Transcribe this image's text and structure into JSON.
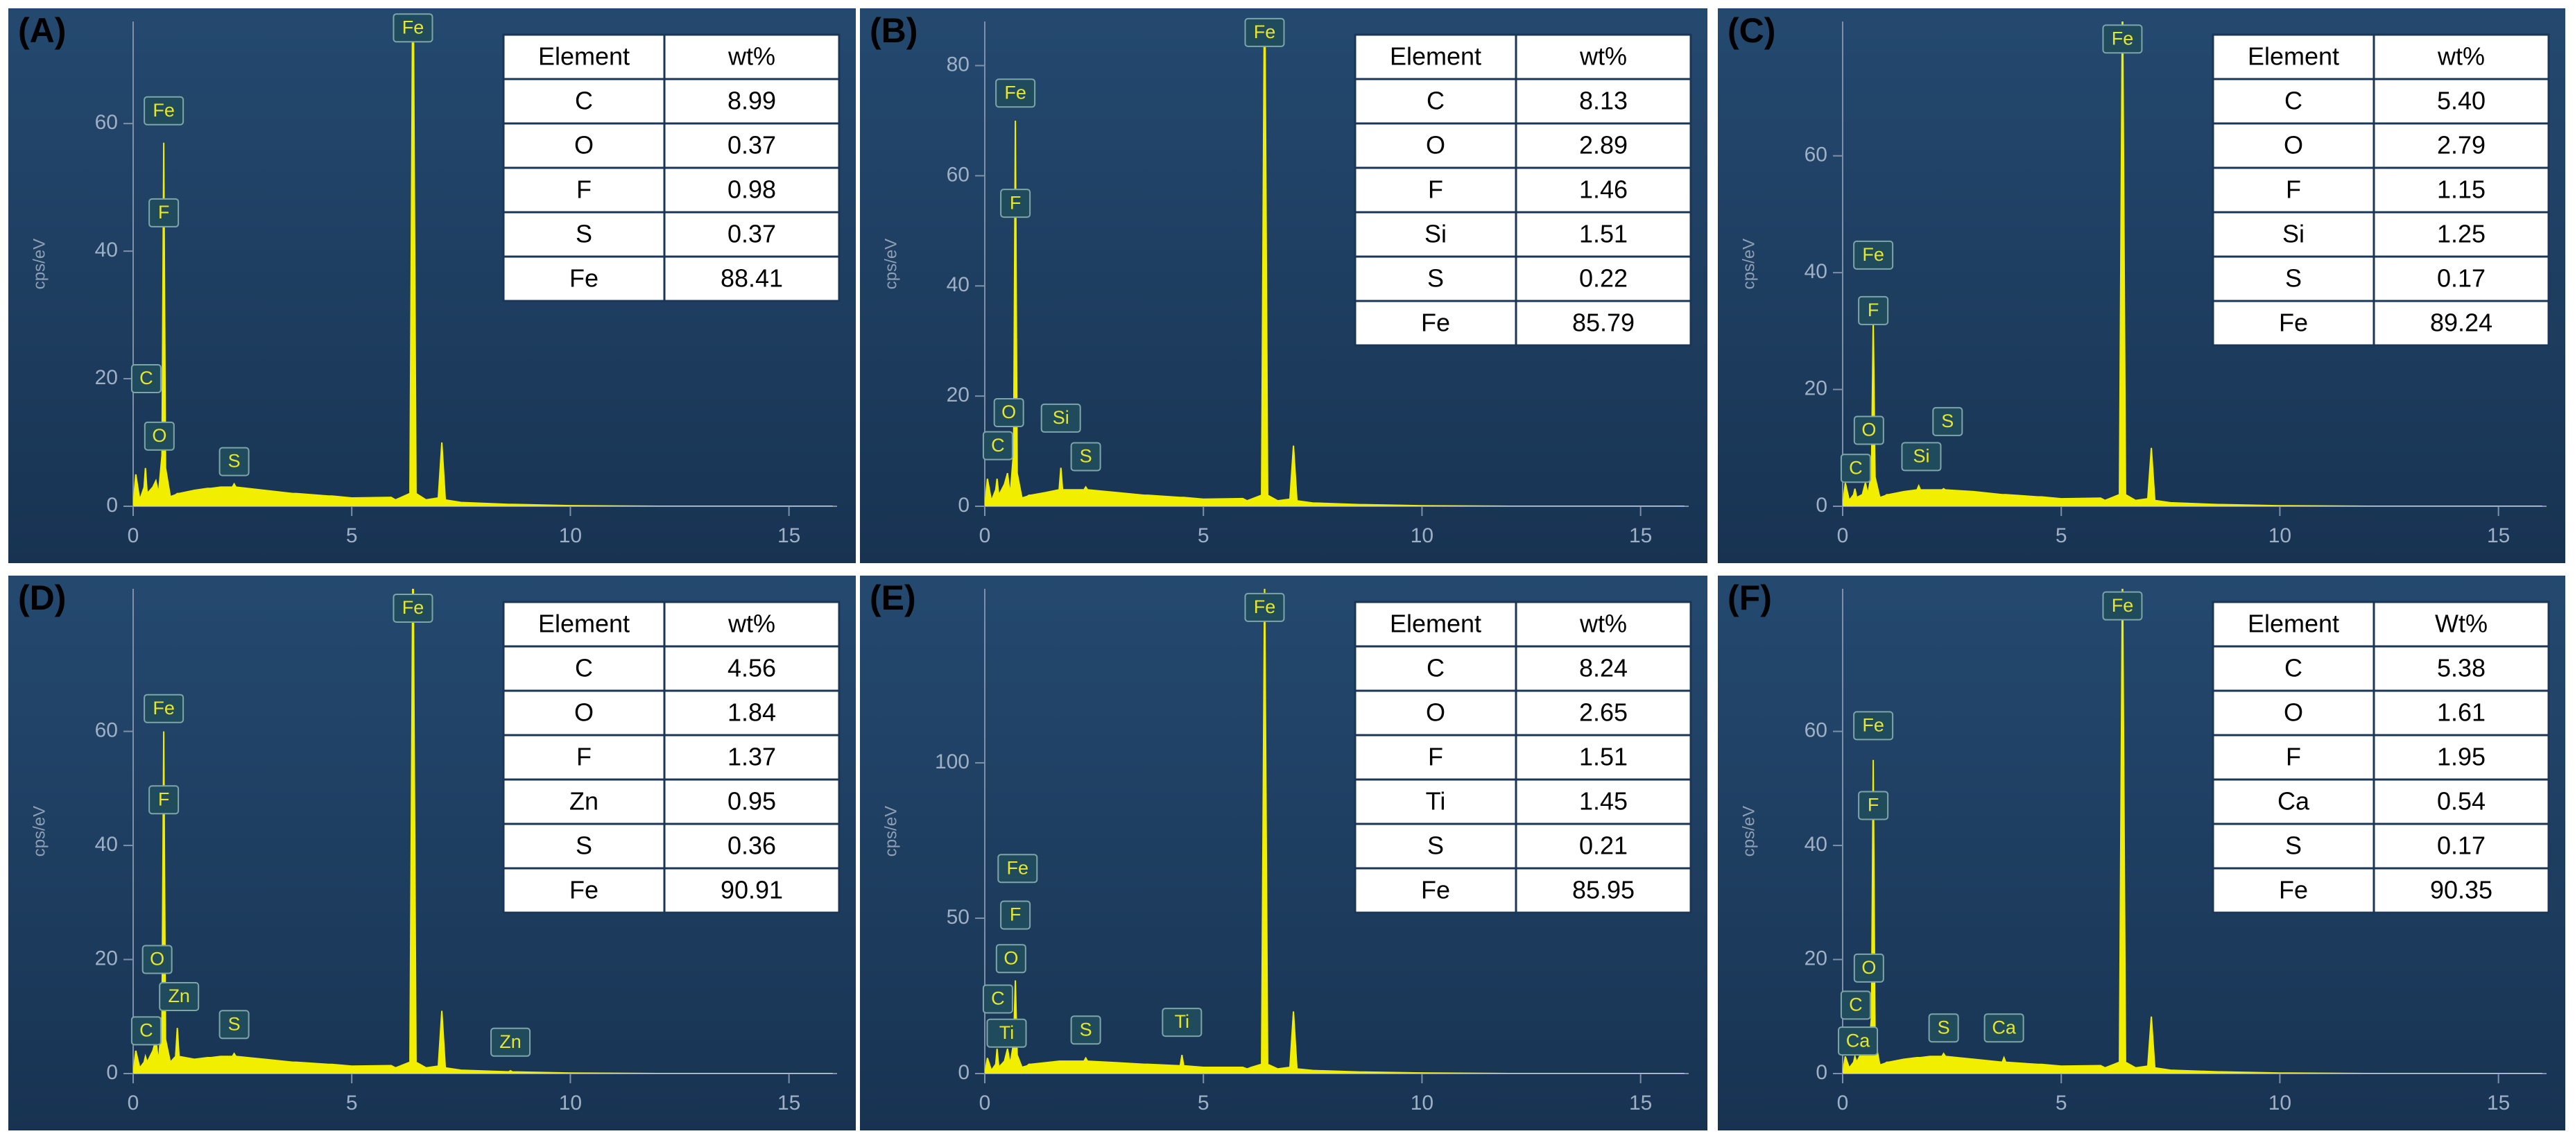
{
  "chart_data": [
    {
      "type": "area",
      "title": "(A)",
      "ylabel": "cps/eV",
      "color": "#f2ee00",
      "x": [
        0,
        0.06,
        0.15,
        0.25,
        0.28,
        0.32,
        0.45,
        0.52,
        0.58,
        0.66,
        0.7,
        0.74,
        0.85,
        0.97,
        1.01,
        1.05,
        1.4,
        1.7,
        1.74,
        1.78,
        2.0,
        2.27,
        2.31,
        2.35,
        3.0,
        3.65,
        3.69,
        3.73,
        4.47,
        4.51,
        4.55,
        5.0,
        5.9,
        6.0,
        6.1,
        6.33,
        6.4,
        6.47,
        6.7,
        6.98,
        7.06,
        7.14,
        7.5,
        8.59,
        8.63,
        8.67,
        10,
        12,
        16
      ],
      "values": [
        0,
        5,
        1,
        3,
        6,
        2,
        3,
        4,
        2,
        8,
        57,
        6,
        1.5,
        1.8,
        2,
        2,
        2.5,
        2.8,
        2.8,
        2.8,
        3,
        3,
        3.5,
        3,
        2.5,
        2,
        2,
        2,
        1.6,
        1.6,
        1.6,
        1.3,
        1.4,
        1,
        1.3,
        2,
        90,
        2,
        1,
        1.3,
        10,
        1,
        0.6,
        0.3,
        0.3,
        0.3,
        0.1,
        0,
        0
      ],
      "xlim": [
        0,
        16.1
      ],
      "xticks": [
        0,
        5,
        10,
        15
      ],
      "ylim": [
        0,
        76
      ],
      "yticks": [
        0,
        20,
        40,
        60
      ],
      "annotations": [
        {
          "text": "Fe",
          "x": 6.4,
          "y": 75
        },
        {
          "text": "Fe",
          "x": 0.7,
          "y": 62
        },
        {
          "text": "F",
          "x": 0.7,
          "y": 46
        },
        {
          "text": "C",
          "x": 0.3,
          "y": 20
        },
        {
          "text": "O",
          "x": 0.6,
          "y": 11
        },
        {
          "text": "S",
          "x": 2.31,
          "y": 7
        }
      ],
      "table": {
        "columns": [
          "Element",
          "wt%"
        ],
        "rows": [
          [
            "C",
            "8.99"
          ],
          [
            "O",
            "0.37"
          ],
          [
            "F",
            "0.98"
          ],
          [
            "S",
            "0.37"
          ],
          [
            "Fe",
            "88.41"
          ]
        ]
      }
    },
    {
      "type": "area",
      "title": "(B)",
      "ylabel": "cps/eV",
      "color": "#f2ee00",
      "x": [
        0,
        0.06,
        0.15,
        0.25,
        0.28,
        0.32,
        0.45,
        0.52,
        0.58,
        0.66,
        0.7,
        0.74,
        0.85,
        0.97,
        1.01,
        1.05,
        1.4,
        1.7,
        1.74,
        1.78,
        2.0,
        2.27,
        2.31,
        2.35,
        3.0,
        3.65,
        3.69,
        3.73,
        4.47,
        4.51,
        4.55,
        5.0,
        5.9,
        6.0,
        6.1,
        6.33,
        6.4,
        6.47,
        6.7,
        6.98,
        7.06,
        7.14,
        7.5,
        8.59,
        8.63,
        8.67,
        10,
        12,
        16
      ],
      "values": [
        0,
        5,
        1,
        3,
        5,
        2,
        4,
        6,
        2,
        10,
        70,
        6,
        1.5,
        1.8,
        2,
        2,
        2.5,
        3,
        7,
        3,
        3,
        3,
        3.5,
        3,
        2.5,
        2,
        2,
        2,
        1.6,
        1.6,
        1.6,
        1.3,
        1.4,
        1,
        1.3,
        2,
        100,
        2,
        1,
        1.3,
        11,
        1,
        0.6,
        0.3,
        0.3,
        0.3,
        0.1,
        0,
        0
      ],
      "xlim": [
        0,
        16.1
      ],
      "xticks": [
        0,
        5,
        10,
        15
      ],
      "ylim": [
        0,
        88
      ],
      "yticks": [
        0,
        20,
        40,
        60,
        80
      ],
      "annotations": [
        {
          "text": "Fe",
          "x": 6.4,
          "y": 86
        },
        {
          "text": "Fe",
          "x": 0.7,
          "y": 75
        },
        {
          "text": "F",
          "x": 0.7,
          "y": 55
        },
        {
          "text": "O",
          "x": 0.55,
          "y": 17
        },
        {
          "text": "C",
          "x": 0.3,
          "y": 11
        },
        {
          "text": "Si",
          "x": 1.74,
          "y": 16
        },
        {
          "text": "S",
          "x": 2.31,
          "y": 9
        }
      ],
      "table": {
        "columns": [
          "Element",
          "wt%"
        ],
        "rows": [
          [
            "C",
            "8.13"
          ],
          [
            "O",
            "2.89"
          ],
          [
            "F",
            "1.46"
          ],
          [
            "Si",
            "1.51"
          ],
          [
            "S",
            "0.22"
          ],
          [
            "Fe",
            "85.79"
          ]
        ]
      }
    },
    {
      "type": "area",
      "title": "(C)",
      "ylabel": "cps/eV",
      "color": "#f2ee00",
      "x": [
        0,
        0.06,
        0.15,
        0.25,
        0.28,
        0.32,
        0.45,
        0.52,
        0.58,
        0.66,
        0.7,
        0.74,
        0.85,
        0.97,
        1.01,
        1.05,
        1.4,
        1.7,
        1.74,
        1.78,
        2.0,
        2.27,
        2.31,
        2.35,
        3.0,
        3.65,
        3.69,
        3.73,
        4.47,
        4.51,
        4.55,
        5.0,
        5.9,
        6.0,
        6.1,
        6.33,
        6.4,
        6.47,
        6.7,
        6.98,
        7.06,
        7.14,
        7.5,
        8.59,
        8.63,
        8.67,
        10,
        12,
        16
      ],
      "values": [
        0,
        4,
        1,
        2,
        3,
        1.5,
        2,
        4,
        2,
        6,
        32,
        5,
        1.5,
        1.8,
        2,
        2,
        2.5,
        2.8,
        3.5,
        2.8,
        2.8,
        2.8,
        3,
        2.8,
        2.5,
        2,
        2,
        2,
        1.6,
        1.6,
        1.6,
        1.3,
        1.4,
        1,
        1.3,
        2,
        90,
        2,
        1,
        1.3,
        10,
        1,
        0.6,
        0.3,
        0.3,
        0.3,
        0.1,
        0,
        0
      ],
      "xlim": [
        0,
        16.1
      ],
      "xticks": [
        0,
        5,
        10,
        15
      ],
      "ylim": [
        0,
        83
      ],
      "yticks": [
        0,
        20,
        40,
        60
      ],
      "annotations": [
        {
          "text": "Fe",
          "x": 6.4,
          "y": 80
        },
        {
          "text": "Fe",
          "x": 0.7,
          "y": 43
        },
        {
          "text": "F",
          "x": 0.7,
          "y": 33.5
        },
        {
          "text": "O",
          "x": 0.6,
          "y": 13
        },
        {
          "text": "C",
          "x": 0.3,
          "y": 6.5
        },
        {
          "text": "Si",
          "x": 1.8,
          "y": 8.5
        },
        {
          "text": "S",
          "x": 2.4,
          "y": 14.5
        }
      ],
      "table": {
        "columns": [
          "Element",
          "wt%"
        ],
        "rows": [
          [
            "C",
            "5.40"
          ],
          [
            "O",
            "2.79"
          ],
          [
            "F",
            "1.15"
          ],
          [
            "Si",
            "1.25"
          ],
          [
            "S",
            "0.17"
          ],
          [
            "Fe",
            "89.24"
          ]
        ]
      }
    },
    {
      "type": "area",
      "title": "(D)",
      "ylabel": "cps/eV",
      "color": "#f2ee00",
      "x": [
        0,
        0.06,
        0.15,
        0.25,
        0.28,
        0.32,
        0.45,
        0.52,
        0.58,
        0.66,
        0.7,
        0.74,
        0.85,
        0.97,
        1.01,
        1.05,
        1.4,
        1.7,
        1.74,
        1.78,
        2.0,
        2.27,
        2.31,
        2.35,
        3.0,
        3.65,
        3.69,
        3.73,
        4.47,
        4.51,
        4.55,
        5.0,
        5.9,
        6.0,
        6.1,
        6.33,
        6.4,
        6.47,
        6.7,
        6.98,
        7.06,
        7.14,
        7.5,
        8.59,
        8.63,
        8.67,
        10,
        12,
        16
      ],
      "values": [
        0,
        4,
        1,
        2,
        3,
        2,
        4,
        6,
        2,
        10,
        60,
        6,
        2,
        3,
        8,
        3,
        2.5,
        2.8,
        2.8,
        2.8,
        3,
        3,
        3.5,
        3,
        2.5,
        2,
        2,
        2,
        1.6,
        1.6,
        1.6,
        1.3,
        1.4,
        1,
        1.3,
        2,
        95,
        2,
        1,
        1.3,
        11,
        1,
        0.6,
        0.3,
        0.5,
        0.3,
        0.1,
        0,
        0
      ],
      "xlim": [
        0,
        16.1
      ],
      "xticks": [
        0,
        5,
        10,
        15
      ],
      "ylim": [
        0,
        85
      ],
      "yticks": [
        0,
        20,
        40,
        60
      ],
      "annotations": [
        {
          "text": "Fe",
          "x": 6.4,
          "y": 81.6
        },
        {
          "text": "Fe",
          "x": 0.7,
          "y": 64
        },
        {
          "text": "F",
          "x": 0.7,
          "y": 48
        },
        {
          "text": "O",
          "x": 0.55,
          "y": 20
        },
        {
          "text": "Zn",
          "x": 1.05,
          "y": 13.5
        },
        {
          "text": "C",
          "x": 0.3,
          "y": 7.5
        },
        {
          "text": "S",
          "x": 2.31,
          "y": 8.6
        },
        {
          "text": "Zn",
          "x": 8.63,
          "y": 5.5
        }
      ],
      "table": {
        "columns": [
          "Element",
          "wt%"
        ],
        "rows": [
          [
            "C",
            "4.56"
          ],
          [
            "O",
            "1.84"
          ],
          [
            "F",
            "1.37"
          ],
          [
            "Zn",
            "0.95"
          ],
          [
            "S",
            "0.36"
          ],
          [
            "Fe",
            "90.91"
          ]
        ]
      }
    },
    {
      "type": "area",
      "title": "(E)",
      "ylabel": "cps/eV",
      "color": "#f2ee00",
      "x": [
        0,
        0.06,
        0.15,
        0.25,
        0.28,
        0.32,
        0.45,
        0.52,
        0.58,
        0.66,
        0.7,
        0.74,
        0.85,
        0.97,
        1.01,
        1.05,
        1.4,
        1.7,
        1.74,
        1.78,
        2.0,
        2.27,
        2.31,
        2.35,
        3.0,
        3.65,
        3.69,
        3.73,
        4.47,
        4.51,
        4.55,
        5.0,
        5.9,
        6.0,
        6.1,
        6.33,
        6.4,
        6.47,
        6.7,
        6.98,
        7.06,
        7.14,
        7.5,
        8.59,
        8.63,
        8.67,
        10,
        12,
        16
      ],
      "values": [
        0,
        5,
        1,
        3,
        8,
        2,
        4,
        8,
        3,
        10,
        30,
        6,
        2,
        2.5,
        3,
        3,
        3.5,
        4,
        4,
        4,
        4,
        4,
        5,
        4,
        3.5,
        3,
        3,
        3,
        2.5,
        6,
        2.5,
        2,
        2,
        1.5,
        2,
        3,
        160,
        3,
        1.5,
        2,
        20,
        1.5,
        1,
        0.5,
        0.5,
        0.5,
        0.2,
        0,
        0
      ],
      "xlim": [
        0,
        16.1
      ],
      "xticks": [
        0,
        5,
        10,
        15
      ],
      "ylim": [
        0,
        156
      ],
      "yticks": [
        0,
        50,
        100
      ],
      "annotations": [
        {
          "text": "Fe",
          "x": 6.4,
          "y": 150
        },
        {
          "text": "Fe",
          "x": 0.75,
          "y": 66
        },
        {
          "text": "F",
          "x": 0.7,
          "y": 51
        },
        {
          "text": "O",
          "x": 0.6,
          "y": 37
        },
        {
          "text": "C",
          "x": 0.3,
          "y": 24
        },
        {
          "text": "Ti",
          "x": 0.5,
          "y": 13
        },
        {
          "text": "S",
          "x": 2.31,
          "y": 14
        },
        {
          "text": "Ti",
          "x": 4.51,
          "y": 16.5
        }
      ],
      "table": {
        "columns": [
          "Element",
          "wt%"
        ],
        "rows": [
          [
            "C",
            "8.24"
          ],
          [
            "O",
            "2.65"
          ],
          [
            "F",
            "1.51"
          ],
          [
            "Ti",
            "1.45"
          ],
          [
            "S",
            "0.21"
          ],
          [
            "Fe",
            "85.95"
          ]
        ]
      }
    },
    {
      "type": "area",
      "title": "(F)",
      "ylabel": "cps/eV",
      "color": "#f2ee00",
      "x": [
        0,
        0.06,
        0.15,
        0.25,
        0.28,
        0.32,
        0.45,
        0.52,
        0.58,
        0.66,
        0.7,
        0.74,
        0.85,
        0.97,
        1.01,
        1.05,
        1.4,
        1.7,
        1.74,
        1.78,
        2.0,
        2.27,
        2.31,
        2.35,
        3.0,
        3.65,
        3.69,
        3.73,
        4.47,
        4.51,
        4.55,
        5.0,
        5.9,
        6.0,
        6.1,
        6.33,
        6.4,
        6.47,
        6.7,
        6.98,
        7.06,
        7.14,
        7.5,
        8.59,
        8.63,
        8.67,
        10,
        12,
        16
      ],
      "values": [
        0,
        3,
        1,
        2,
        3,
        2,
        4,
        8,
        2,
        10,
        55,
        6,
        1.5,
        1.8,
        2,
        2,
        2.5,
        2.8,
        2.8,
        2.8,
        3,
        3,
        3.5,
        3,
        2.5,
        2,
        2.8,
        2,
        1.6,
        1.6,
        1.6,
        1.3,
        1.4,
        1,
        1.3,
        2,
        90,
        2,
        1,
        1.3,
        10,
        1,
        0.6,
        0.3,
        0.3,
        0.3,
        0.1,
        0,
        0
      ],
      "xlim": [
        0,
        16.1
      ],
      "xticks": [
        0,
        5,
        10,
        15
      ],
      "ylim": [
        0,
        85
      ],
      "yticks": [
        0,
        20,
        40,
        60
      ],
      "annotations": [
        {
          "text": "Fe",
          "x": 6.4,
          "y": 82
        },
        {
          "text": "Fe",
          "x": 0.7,
          "y": 61
        },
        {
          "text": "F",
          "x": 0.7,
          "y": 47
        },
        {
          "text": "O",
          "x": 0.6,
          "y": 18.5
        },
        {
          "text": "C",
          "x": 0.3,
          "y": 12
        },
        {
          "text": "Ca",
          "x": 0.35,
          "y": 5.7
        },
        {
          "text": "S",
          "x": 2.31,
          "y": 8
        },
        {
          "text": "Ca",
          "x": 3.69,
          "y": 8
        }
      ],
      "table": {
        "columns": [
          "Element",
          "Wt%"
        ],
        "rows": [
          [
            "C",
            "5.38"
          ],
          [
            "O",
            "1.61"
          ],
          [
            "F",
            "1.95"
          ],
          [
            "Ca",
            "0.54"
          ],
          [
            "S",
            "0.17"
          ],
          [
            "Fe",
            "90.35"
          ]
        ]
      }
    }
  ]
}
